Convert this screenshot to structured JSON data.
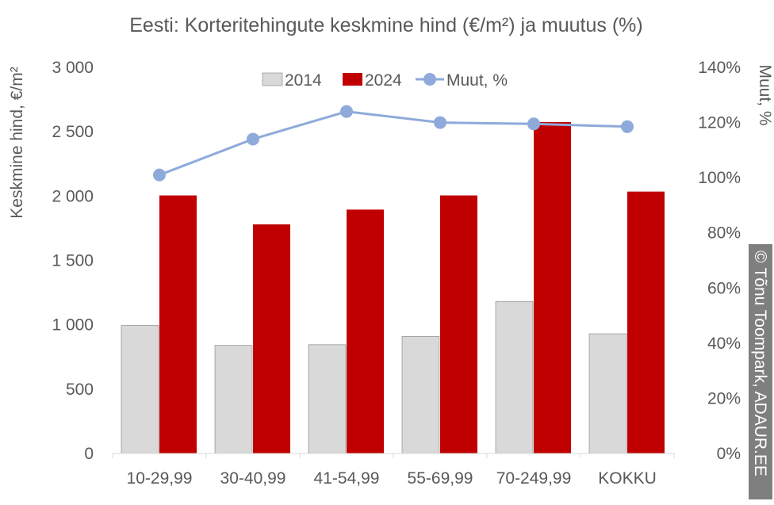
{
  "chart_data": {
    "type": "bar",
    "title": "Eesti: Korteritehingute keskmine hind (€/m²) ja muutus (%)",
    "categories": [
      "10-29,99",
      "30-40,99",
      "41-54,99",
      "55-69,99",
      "70-249,99",
      "KOKKU"
    ],
    "series": [
      {
        "name": "2014",
        "type": "bar",
        "axis": "left",
        "color": "#d9d9d9",
        "values": [
          995,
          840,
          845,
          910,
          1180,
          930
        ]
      },
      {
        "name": "2024",
        "type": "bar",
        "axis": "left",
        "color": "#c00000",
        "values": [
          2005,
          1780,
          1895,
          2005,
          2575,
          2035
        ]
      },
      {
        "name": "Muut, %",
        "type": "line",
        "axis": "right",
        "color": "#8eaadb",
        "marker": "circle",
        "values": [
          101,
          114,
          124,
          120,
          119.5,
          118.5
        ]
      }
    ],
    "ylabel": "Keskmine hind, €/m²",
    "y2label": "Muut, %",
    "ylim": [
      0,
      3000
    ],
    "y2lim": [
      0,
      140
    ],
    "yticks": [
      "0",
      "500",
      "1 000",
      "1 500",
      "2 000",
      "2 500",
      "3 000"
    ],
    "y2ticks": [
      "0%",
      "20%",
      "40%",
      "60%",
      "80%",
      "100%",
      "120%",
      "140%"
    ],
    "grid": false,
    "legend_position": "top-center"
  },
  "watermark": {
    "symbol": "©",
    "text": "Tõnu Toompark, ADAUR.EE",
    "background": "#7f7f7f",
    "orientation": "vertical"
  }
}
